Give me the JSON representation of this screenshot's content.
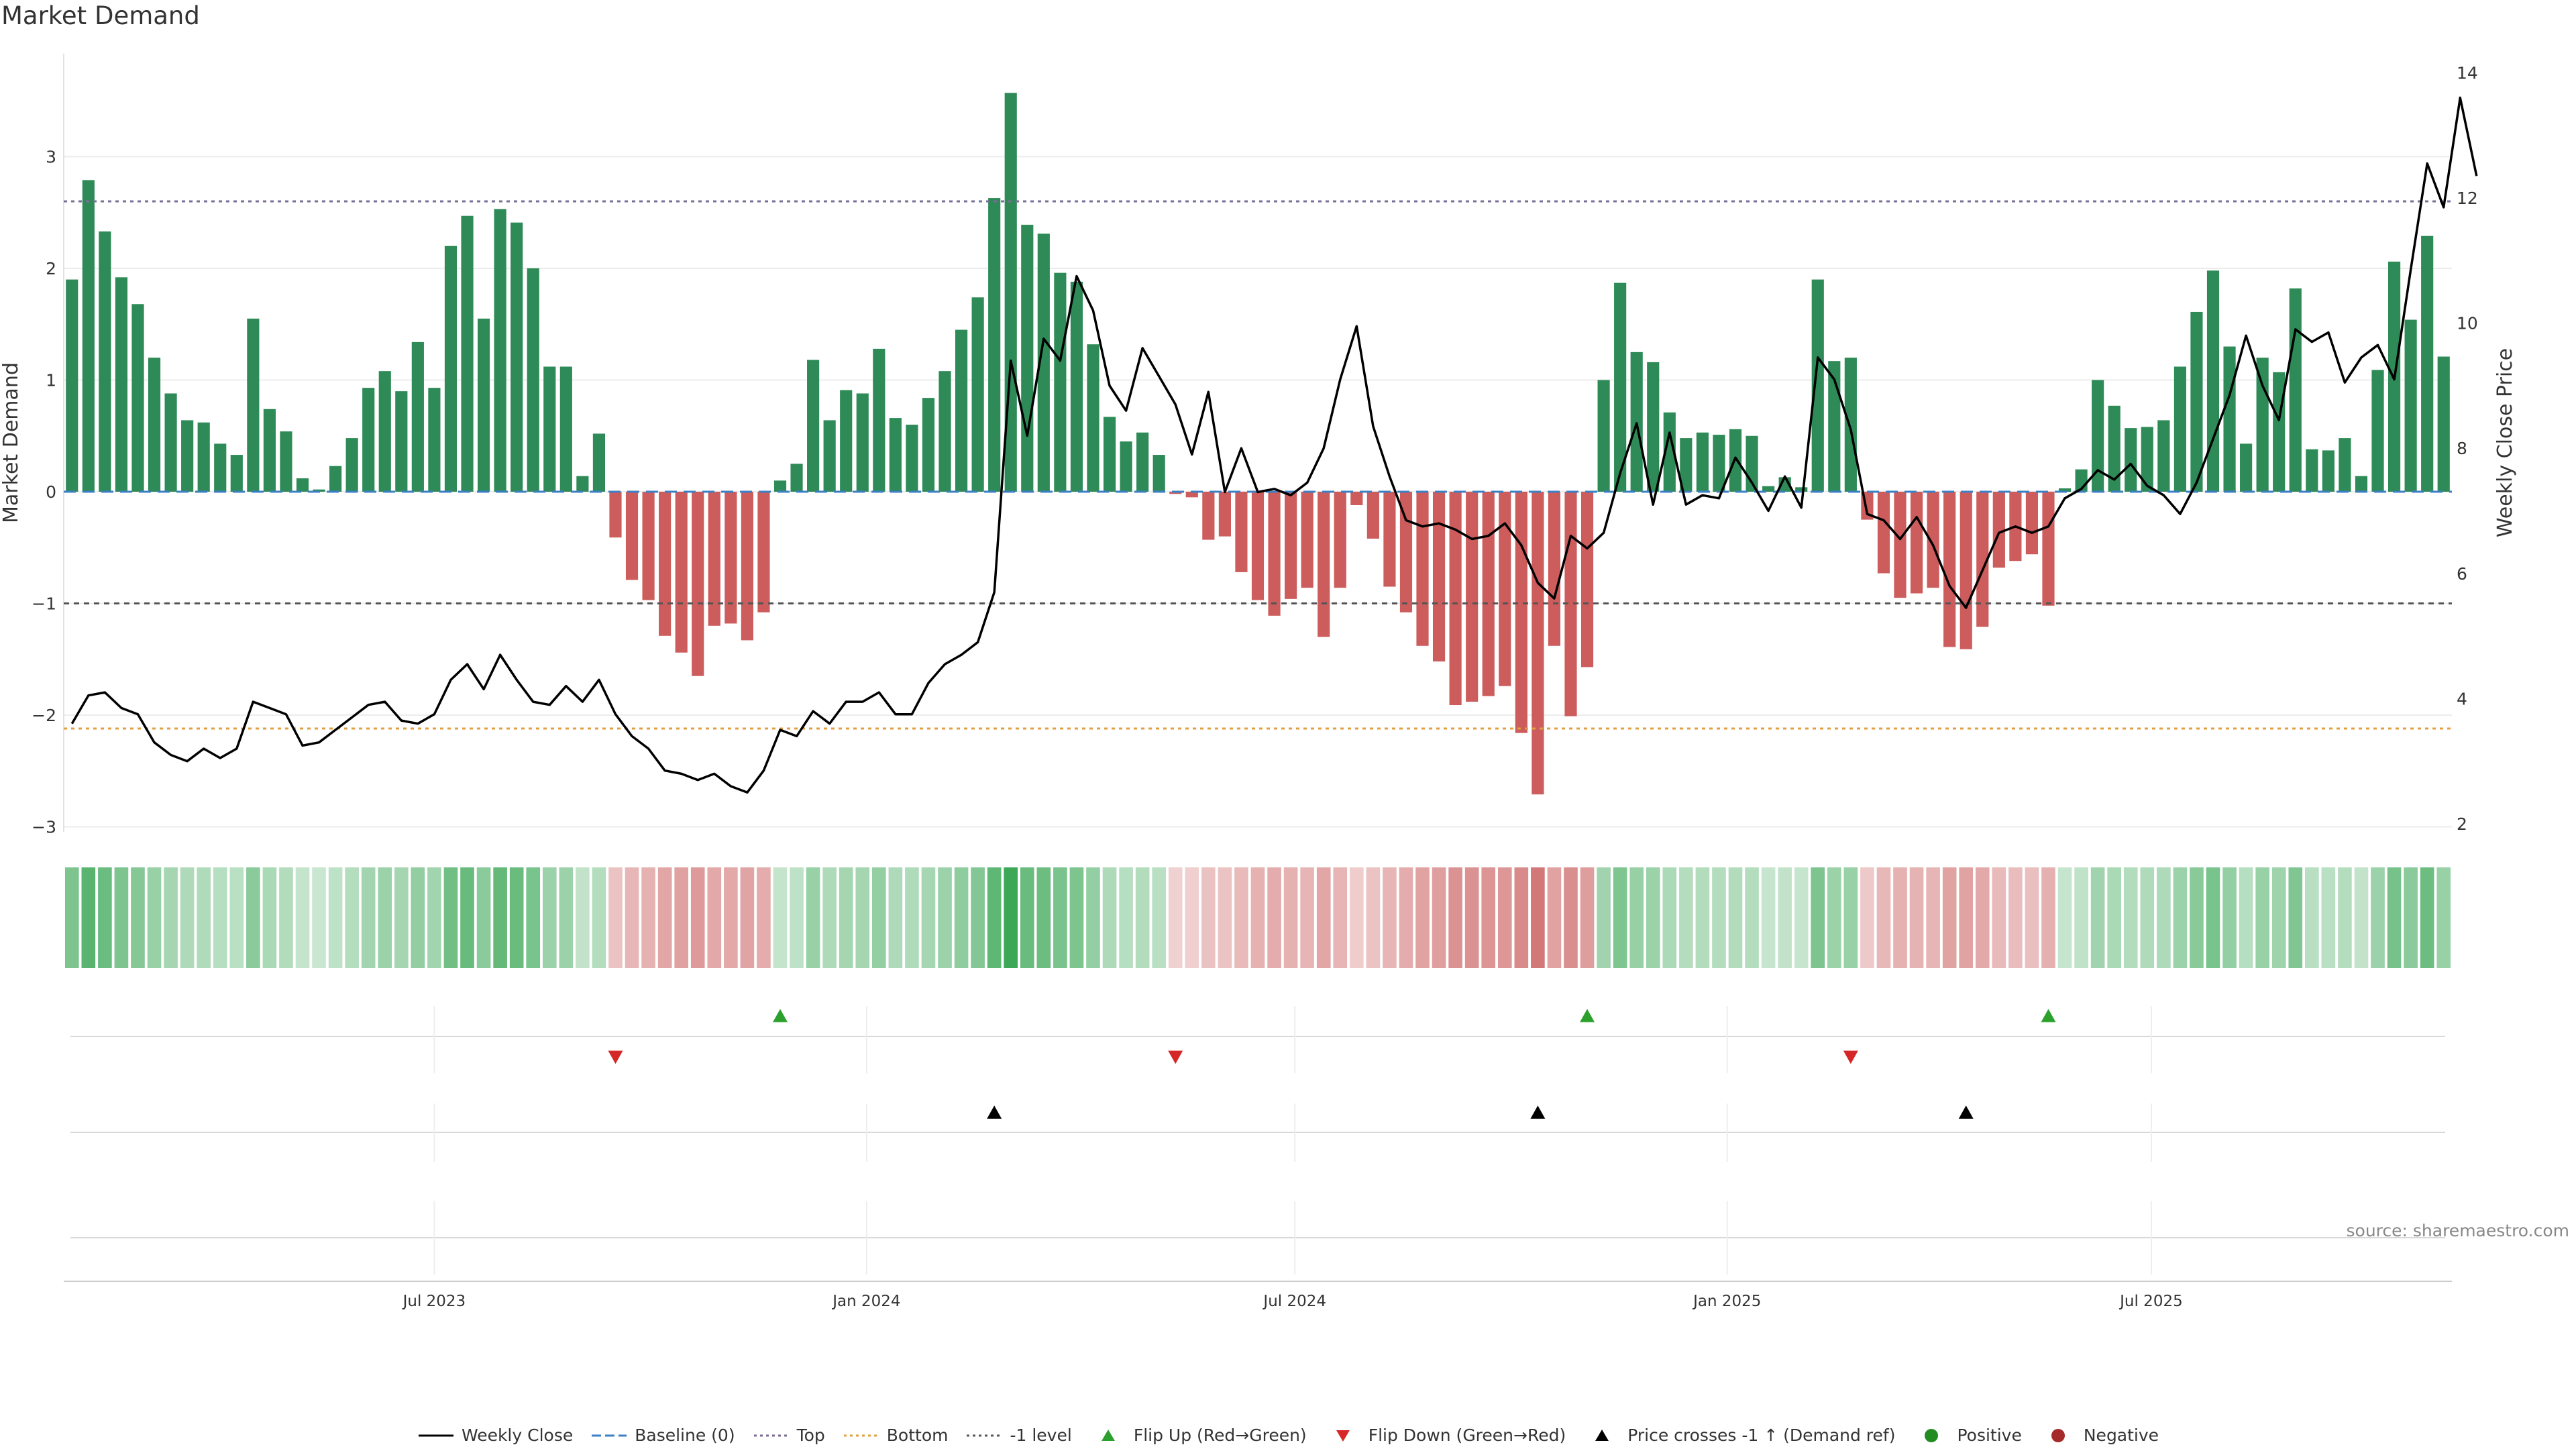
{
  "title": "Market Demand",
  "source": "source: sharemaestro.com",
  "colors": {
    "positive": "#2e8b57",
    "negative": "#cd5c5c",
    "price": "#000000",
    "top": "#7a6e96",
    "bottom": "#e0a040",
    "minus_one": "#555555",
    "baseline": "#3b7fc4",
    "flip_up": "#2ca02c",
    "flip_down": "#d62728",
    "cross": "#000000",
    "positive_dot": "#228b22",
    "negative_dot": "#a52a2a"
  },
  "legend": [
    {
      "label": "Weekly Close",
      "key": "line-solid",
      "color": "#000000"
    },
    {
      "label": "Baseline (0)",
      "key": "line-dashed",
      "color": "#3b7fc4"
    },
    {
      "label": "Top",
      "key": "line-dotted",
      "color": "#7a6e96"
    },
    {
      "label": "Bottom",
      "key": "line-dotted",
      "color": "#e0a040"
    },
    {
      "label": "-1 level",
      "key": "line-dotted",
      "color": "#555555"
    },
    {
      "label": "Flip Up (Red→Green)",
      "key": "triangle-up",
      "color": "#2ca02c"
    },
    {
      "label": "Flip Down (Green→Red)",
      "key": "triangle-down",
      "color": "#d62728"
    },
    {
      "label": "Price crosses -1 ↑ (Demand ref)",
      "key": "triangle-up",
      "color": "#000000"
    },
    {
      "label": "Positive",
      "key": "dot",
      "color": "#228b22"
    },
    {
      "label": "Negative",
      "key": "dot",
      "color": "#a52a2a"
    }
  ],
  "chart_data": {
    "type": "bar",
    "title": "Market Demand",
    "ylabel": "Market Demand",
    "y2label": "Weekly Close Price",
    "ylim": [
      -3.0,
      3.85
    ],
    "y2lim": [
      2.0,
      14.2
    ],
    "yticks": [
      -3,
      -2,
      -1,
      0,
      1,
      2,
      3
    ],
    "ytick_labels": [
      "−3",
      "−2",
      "−1",
      "0",
      "1",
      "2",
      "3"
    ],
    "y2ticks": [
      2,
      4,
      6,
      8,
      10,
      12,
      14
    ],
    "y2tick_labels": [
      "2",
      "4",
      "6",
      "8",
      "10",
      "12",
      "14"
    ],
    "xtick_labels": [
      "Jul 2023",
      "Jan 2024",
      "Jul 2024",
      "Jan 2025",
      "Jul 2025"
    ],
    "xtick_index": [
      22.5,
      48.75,
      74.75,
      101,
      126.75
    ],
    "top_level": 2.6,
    "bottom_level": -2.12,
    "minus_one_level": -1.0,
    "baseline": 0,
    "demand": [
      1.9,
      2.79,
      2.33,
      1.92,
      1.68,
      1.2,
      0.88,
      0.64,
      0.62,
      0.43,
      0.33,
      1.55,
      0.74,
      0.54,
      0.12,
      0.02,
      0.23,
      0.48,
      0.93,
      1.08,
      0.9,
      1.34,
      0.93,
      2.2,
      2.47,
      1.55,
      2.53,
      2.41,
      2.0,
      1.12,
      1.12,
      0.14,
      0.52,
      -0.41,
      -0.79,
      -0.97,
      -1.29,
      -1.44,
      -1.65,
      -1.2,
      -1.18,
      -1.33,
      -1.08,
      0.1,
      0.25,
      1.18,
      0.64,
      0.91,
      0.88,
      1.28,
      0.66,
      0.6,
      0.84,
      1.08,
      1.45,
      1.74,
      2.63,
      3.57,
      2.39,
      2.31,
      1.96,
      1.88,
      1.32,
      0.67,
      0.45,
      0.53,
      0.33,
      -0.02,
      -0.05,
      -0.43,
      -0.4,
      -0.72,
      -0.97,
      -1.11,
      -0.96,
      -0.86,
      -1.3,
      -0.86,
      -0.12,
      -0.42,
      -0.85,
      -1.08,
      -1.38,
      -1.52,
      -1.91,
      -1.88,
      -1.83,
      -1.74,
      -2.16,
      -2.71,
      -1.38,
      -2.01,
      -1.57,
      1.0,
      1.87,
      1.25,
      1.16,
      0.71,
      0.48,
      0.53,
      0.51,
      0.56,
      0.5,
      0.05,
      0.13,
      0.04,
      1.9,
      1.17,
      1.2,
      -0.25,
      -0.73,
      -0.95,
      -0.91,
      -0.86,
      -1.39,
      -1.41,
      -1.21,
      -0.68,
      -0.62,
      -0.56,
      -1.02,
      0.03,
      0.2,
      1.0,
      0.77,
      0.57,
      0.58,
      0.64,
      1.12,
      1.61,
      1.98,
      1.3,
      0.43,
      1.2,
      1.07,
      1.82,
      0.38,
      0.37,
      0.48,
      0.14,
      1.09,
      2.06,
      1.54,
      2.29,
      1.21
    ],
    "close": [
      3.6,
      4.05,
      4.1,
      3.85,
      3.75,
      3.3,
      3.1,
      3.0,
      3.2,
      3.05,
      3.2,
      3.95,
      3.85,
      3.75,
      3.25,
      3.3,
      3.5,
      3.7,
      3.9,
      3.95,
      3.65,
      3.6,
      3.75,
      4.3,
      4.55,
      4.15,
      4.7,
      4.3,
      3.95,
      3.9,
      4.2,
      3.95,
      4.3,
      3.75,
      3.4,
      3.2,
      2.85,
      2.8,
      2.7,
      2.8,
      2.6,
      2.5,
      2.85,
      3.5,
      3.4,
      3.8,
      3.6,
      3.95,
      3.95,
      4.1,
      3.75,
      3.75,
      4.25,
      4.55,
      4.7,
      4.9,
      5.7,
      9.4,
      8.2,
      9.75,
      9.4,
      10.75,
      10.2,
      9.0,
      8.6,
      9.6,
      9.15,
      8.7,
      7.9,
      8.9,
      7.3,
      8.0,
      7.3,
      7.35,
      7.25,
      7.45,
      8.0,
      9.1,
      9.95,
      8.35,
      7.55,
      6.85,
      6.75,
      6.8,
      6.7,
      6.55,
      6.6,
      6.8,
      6.45,
      5.85,
      5.6,
      6.6,
      6.4,
      6.65,
      7.6,
      8.4,
      7.1,
      8.25,
      7.1,
      7.25,
      7.2,
      7.85,
      7.45,
      7.0,
      7.55,
      7.05,
      9.45,
      9.1,
      8.3,
      6.95,
      6.85,
      6.55,
      6.9,
      6.45,
      5.8,
      5.45,
      6.05,
      6.65,
      6.75,
      6.65,
      6.75,
      7.2,
      7.35,
      7.65,
      7.5,
      7.75,
      7.4,
      7.25,
      6.95,
      7.45,
      8.15,
      8.85,
      9.8,
      9.0,
      8.45,
      9.9,
      9.7,
      9.85,
      9.05,
      9.45,
      9.65,
      9.1,
      10.85,
      12.55,
      11.85,
      13.6,
      12.35
    ],
    "flip_up_index": [
      43.5,
      92.5,
      120.5
    ],
    "flip_down_index": [
      33.5,
      67.5,
      108.5
    ],
    "cross_index": [
      56.5,
      89.5,
      115.5
    ]
  }
}
